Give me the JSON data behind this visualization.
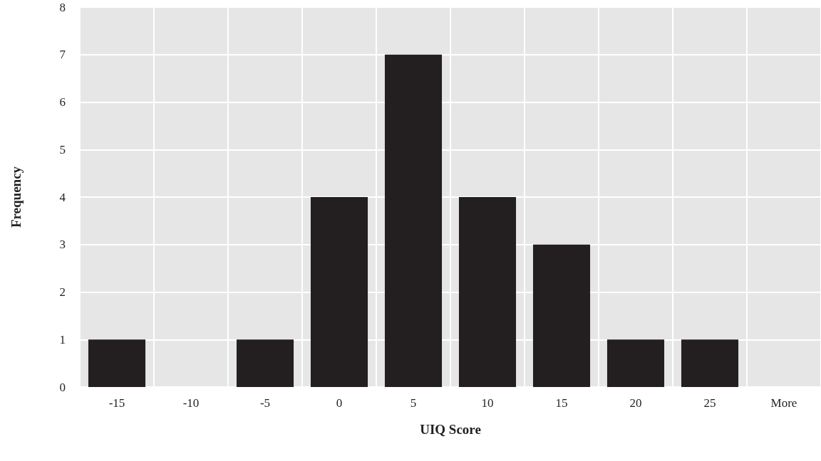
{
  "chart_data": {
    "type": "bar",
    "xlabel": "UIQ Score",
    "ylabel": "Frequency",
    "categories": [
      "-15",
      "-10",
      "-5",
      "0",
      "5",
      "10",
      "15",
      "20",
      "25",
      "More"
    ],
    "values": [
      1,
      0,
      1,
      4,
      7,
      4,
      3,
      1,
      1,
      0
    ],
    "color": "#231f20",
    "ylim": [
      0,
      8
    ],
    "yticks": [
      0,
      1,
      2,
      3,
      4,
      5,
      6,
      7,
      8
    ],
    "grid": true
  }
}
